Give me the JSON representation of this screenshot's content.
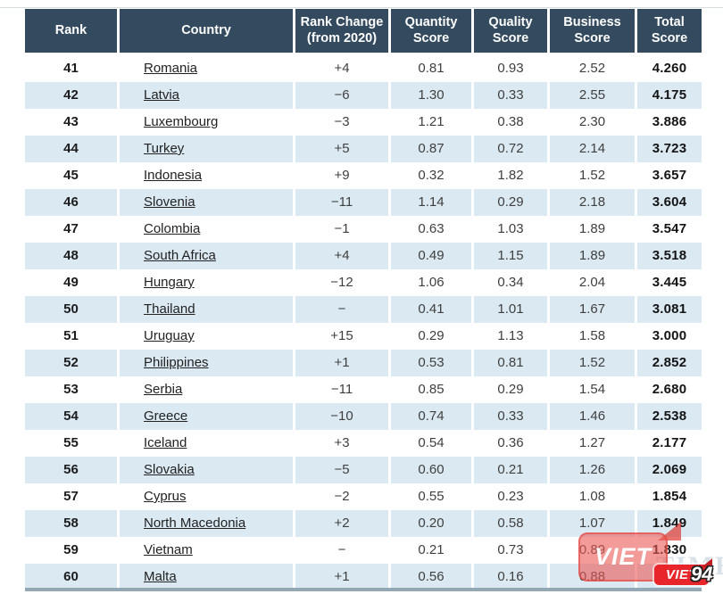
{
  "chart_data": {
    "type": "table",
    "columns": [
      {
        "key": "rank",
        "line1": "Rank",
        "line2": ""
      },
      {
        "key": "country",
        "line1": "Country",
        "line2": ""
      },
      {
        "key": "rank_change",
        "line1": "Rank Change",
        "line2": "(from 2020)"
      },
      {
        "key": "quantity",
        "line1": "Quantity",
        "line2": "Score"
      },
      {
        "key": "quality",
        "line1": "Quality",
        "line2": "Score"
      },
      {
        "key": "business",
        "line1": "Business",
        "line2": "Score"
      },
      {
        "key": "total",
        "line1": "Total",
        "line2": "Score"
      }
    ],
    "rows": [
      {
        "rank": "41",
        "country": "Romania",
        "rank_change": "+4",
        "quantity": "0.81",
        "quality": "0.93",
        "business": "2.52",
        "total": "4.260"
      },
      {
        "rank": "42",
        "country": "Latvia",
        "rank_change": "−6",
        "quantity": "1.30",
        "quality": "0.33",
        "business": "2.55",
        "total": "4.175"
      },
      {
        "rank": "43",
        "country": "Luxembourg",
        "rank_change": "−3",
        "quantity": "1.21",
        "quality": "0.38",
        "business": "2.30",
        "total": "3.886"
      },
      {
        "rank": "44",
        "country": "Turkey",
        "rank_change": "+5",
        "quantity": "0.87",
        "quality": "0.72",
        "business": "2.14",
        "total": "3.723"
      },
      {
        "rank": "45",
        "country": "Indonesia",
        "rank_change": "+9",
        "quantity": "0.32",
        "quality": "1.82",
        "business": "1.52",
        "total": "3.657"
      },
      {
        "rank": "46",
        "country": "Slovenia",
        "rank_change": "−11",
        "quantity": "1.14",
        "quality": "0.29",
        "business": "2.18",
        "total": "3.604"
      },
      {
        "rank": "47",
        "country": "Colombia",
        "rank_change": "−1",
        "quantity": "0.63",
        "quality": "1.03",
        "business": "1.89",
        "total": "3.547"
      },
      {
        "rank": "48",
        "country": "South Africa",
        "rank_change": "+4",
        "quantity": "0.49",
        "quality": "1.15",
        "business": "1.89",
        "total": "3.518"
      },
      {
        "rank": "49",
        "country": "Hungary",
        "rank_change": "−12",
        "quantity": "1.06",
        "quality": "0.34",
        "business": "2.04",
        "total": "3.445"
      },
      {
        "rank": "50",
        "country": "Thailand",
        "rank_change": "−",
        "quantity": "0.41",
        "quality": "1.01",
        "business": "1.67",
        "total": "3.081"
      },
      {
        "rank": "51",
        "country": "Uruguay",
        "rank_change": "+15",
        "quantity": "0.29",
        "quality": "1.13",
        "business": "1.58",
        "total": "3.000"
      },
      {
        "rank": "52",
        "country": "Philippines",
        "rank_change": "+1",
        "quantity": "0.53",
        "quality": "0.81",
        "business": "1.52",
        "total": "2.852"
      },
      {
        "rank": "53",
        "country": "Serbia",
        "rank_change": "−11",
        "quantity": "0.85",
        "quality": "0.29",
        "business": "1.54",
        "total": "2.680"
      },
      {
        "rank": "54",
        "country": "Greece",
        "rank_change": "−10",
        "quantity": "0.74",
        "quality": "0.33",
        "business": "1.46",
        "total": "2.538"
      },
      {
        "rank": "55",
        "country": "Iceland",
        "rank_change": "+3",
        "quantity": "0.54",
        "quality": "0.36",
        "business": "1.27",
        "total": "2.177"
      },
      {
        "rank": "56",
        "country": "Slovakia",
        "rank_change": "−5",
        "quantity": "0.60",
        "quality": "0.21",
        "business": "1.26",
        "total": "2.069"
      },
      {
        "rank": "57",
        "country": "Cyprus",
        "rank_change": "−2",
        "quantity": "0.55",
        "quality": "0.23",
        "business": "1.08",
        "total": "1.854"
      },
      {
        "rank": "58",
        "country": "North Macedonia",
        "rank_change": "+2",
        "quantity": "0.20",
        "quality": "0.58",
        "business": "1.07",
        "total": "1.849"
      },
      {
        "rank": "59",
        "country": "Vietnam",
        "rank_change": "−",
        "quantity": "0.21",
        "quality": "0.73",
        "business": "0.89",
        "total": "1.830"
      },
      {
        "rank": "60",
        "country": "Malta",
        "rank_change": "+1",
        "quantity": "0.56",
        "quality": "0.16",
        "business": "0.88",
        "total": ""
      }
    ]
  },
  "watermark": {
    "primary_text": "VIET",
    "badge_text": "VIET",
    "badge_suffix": "94",
    "ghost_text": "TIMES",
    "red": "#e8252b"
  },
  "colors": {
    "header_bg": "#334a5f",
    "header_text": "#ffffff",
    "row_alt_bg": "#dbe9f2"
  }
}
